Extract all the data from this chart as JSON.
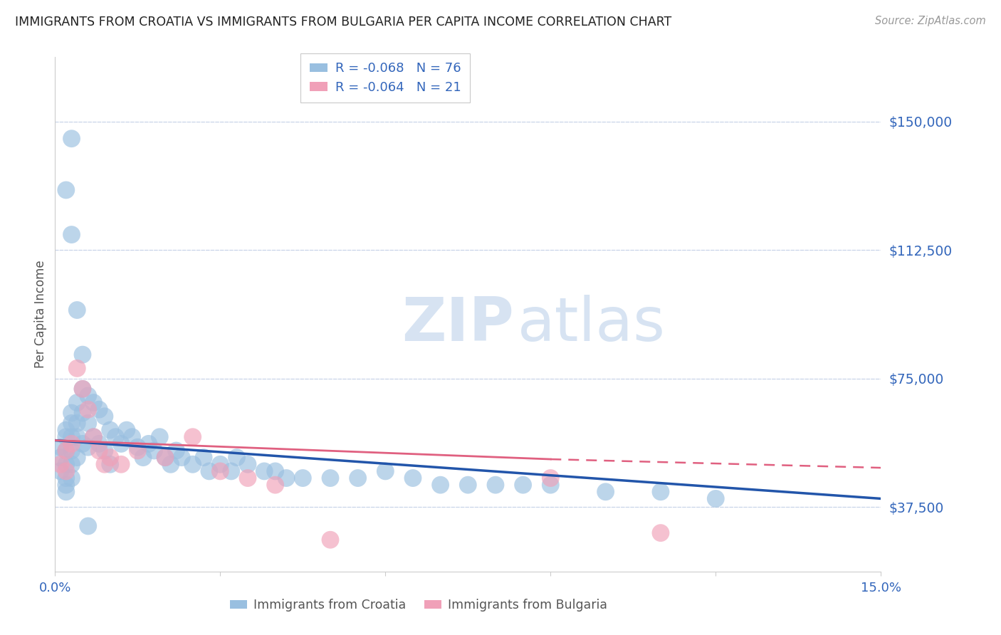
{
  "title": "IMMIGRANTS FROM CROATIA VS IMMIGRANTS FROM BULGARIA PER CAPITA INCOME CORRELATION CHART",
  "source": "Source: ZipAtlas.com",
  "ylabel": "Per Capita Income",
  "xlim": [
    0.0,
    0.15
  ],
  "ylim": [
    18750,
    168750
  ],
  "yticks": [
    37500,
    75000,
    112500,
    150000
  ],
  "ytick_labels": [
    "$37,500",
    "$75,000",
    "$112,500",
    "$150,000"
  ],
  "xtick_left_label": "0.0%",
  "xtick_right_label": "15.0%",
  "croatia_color": "#99bfe0",
  "bulgaria_color": "#f0a0b8",
  "croatia_line_color": "#2255aa",
  "bulgaria_line_color": "#e06080",
  "legend_r_croatia": "R = -0.068",
  "legend_n_croatia": "N = 76",
  "legend_r_bulgaria": "R = -0.064",
  "legend_n_bulgaria": "N = 21",
  "legend_label_croatia": "Immigrants from Croatia",
  "legend_label_bulgaria": "Immigrants from Bulgaria",
  "background_color": "#ffffff",
  "grid_color": "#c8d4e8",
  "title_color": "#222222",
  "axis_label_color": "#555555",
  "tick_label_color": "#3366bb",
  "croatia_x": [
    0.001,
    0.001,
    0.001,
    0.002,
    0.002,
    0.002,
    0.002,
    0.002,
    0.002,
    0.002,
    0.003,
    0.003,
    0.003,
    0.003,
    0.003,
    0.003,
    0.004,
    0.004,
    0.004,
    0.004,
    0.005,
    0.005,
    0.005,
    0.006,
    0.006,
    0.006,
    0.007,
    0.007,
    0.008,
    0.008,
    0.009,
    0.009,
    0.01,
    0.01,
    0.011,
    0.012,
    0.013,
    0.014,
    0.015,
    0.016,
    0.017,
    0.018,
    0.019,
    0.02,
    0.021,
    0.022,
    0.023,
    0.025,
    0.027,
    0.028,
    0.03,
    0.032,
    0.033,
    0.035,
    0.038,
    0.04,
    0.042,
    0.045,
    0.05,
    0.055,
    0.06,
    0.065,
    0.07,
    0.075,
    0.08,
    0.085,
    0.09,
    0.1,
    0.11,
    0.12,
    0.002,
    0.003,
    0.004,
    0.005,
    0.006,
    0.003
  ],
  "croatia_y": [
    55000,
    52000,
    48000,
    58000,
    60000,
    54000,
    50000,
    46000,
    44000,
    42000,
    65000,
    62000,
    58000,
    54000,
    50000,
    46000,
    68000,
    62000,
    58000,
    52000,
    72000,
    65000,
    56000,
    70000,
    62000,
    55000,
    68000,
    58000,
    66000,
    56000,
    64000,
    54000,
    60000,
    50000,
    58000,
    56000,
    60000,
    58000,
    55000,
    52000,
    56000,
    54000,
    58000,
    52000,
    50000,
    54000,
    52000,
    50000,
    52000,
    48000,
    50000,
    48000,
    52000,
    50000,
    48000,
    48000,
    46000,
    46000,
    46000,
    46000,
    48000,
    46000,
    44000,
    44000,
    44000,
    44000,
    44000,
    42000,
    42000,
    40000,
    130000,
    117000,
    95000,
    82000,
    32000,
    145000
  ],
  "bulgaria_x": [
    0.001,
    0.002,
    0.002,
    0.003,
    0.004,
    0.005,
    0.006,
    0.007,
    0.008,
    0.009,
    0.01,
    0.012,
    0.015,
    0.02,
    0.025,
    0.03,
    0.035,
    0.04,
    0.05,
    0.09,
    0.11
  ],
  "bulgaria_y": [
    50000,
    54000,
    48000,
    56000,
    78000,
    72000,
    66000,
    58000,
    54000,
    50000,
    52000,
    50000,
    54000,
    52000,
    58000,
    48000,
    46000,
    44000,
    28000,
    46000,
    30000
  ]
}
